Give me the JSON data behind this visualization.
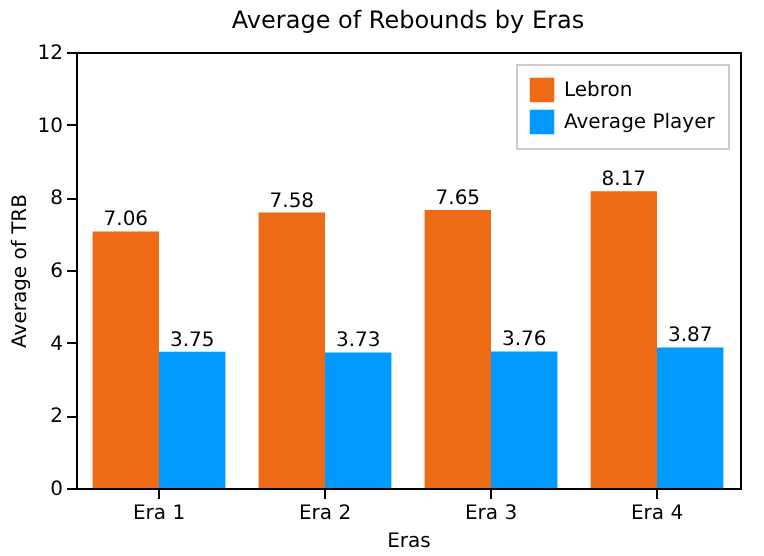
{
  "chart_data": {
    "type": "bar",
    "title": "Average of Rebounds by Eras",
    "xlabel": "Eras",
    "ylabel": "Average of TRB",
    "categories": [
      "Era 1",
      "Era 2",
      "Era 3",
      "Era 4"
    ],
    "series": [
      {
        "name": "Lebron",
        "color": "#ec6b14",
        "values": [
          7.06,
          7.58,
          7.65,
          8.17
        ]
      },
      {
        "name": "Average Player",
        "color": "#0099ff",
        "values": [
          3.75,
          3.73,
          3.76,
          3.87
        ]
      }
    ],
    "ylim": [
      0,
      12
    ],
    "yticks": [
      0,
      2,
      4,
      6,
      8,
      10,
      12
    ],
    "grid": false,
    "legend": "top right",
    "data_labels": true
  }
}
